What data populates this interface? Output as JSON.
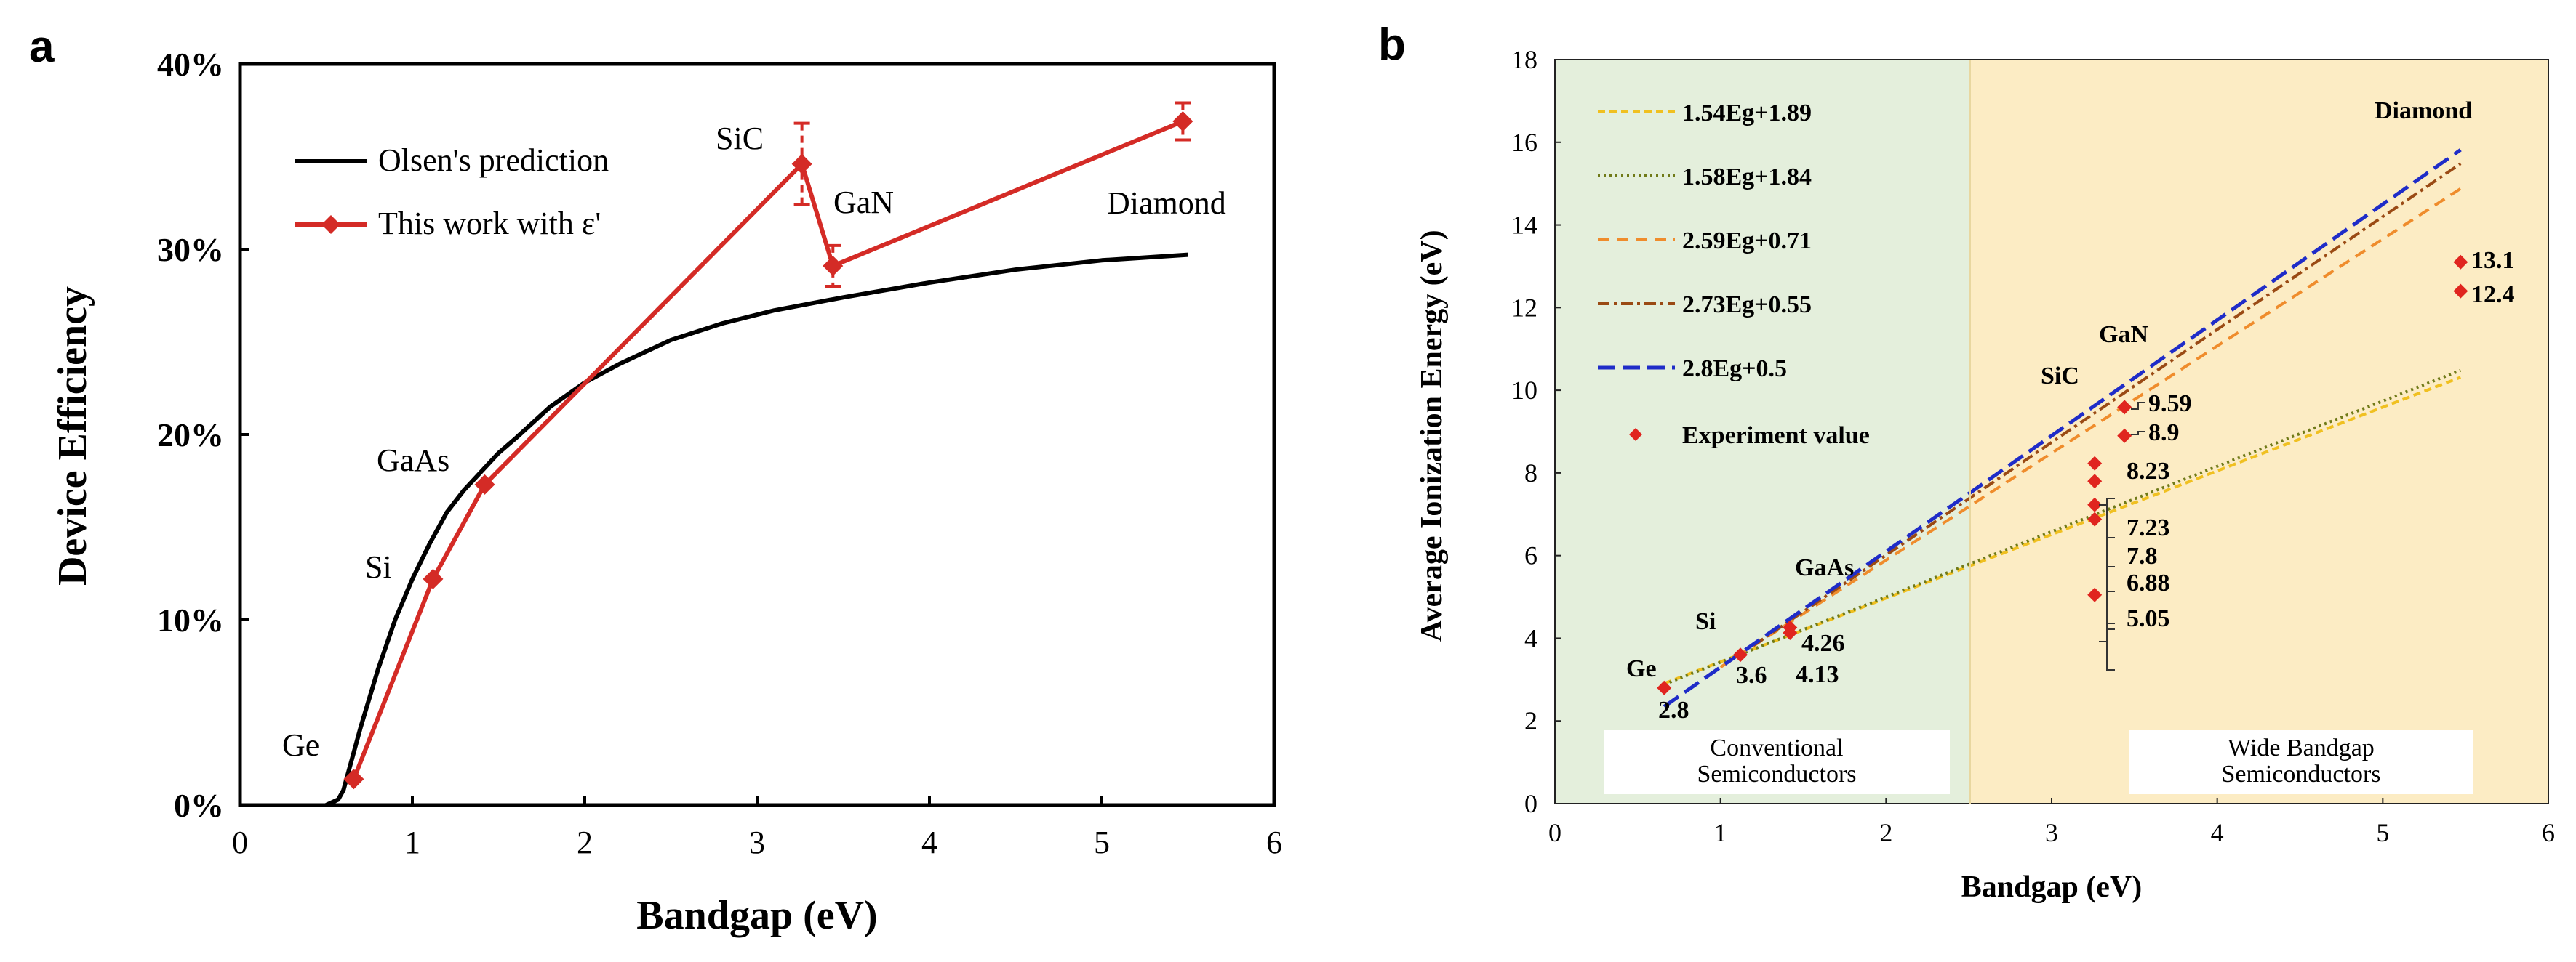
{
  "colors": {
    "black": "#000000",
    "red": "#d42b26",
    "marker_red": "#e0251f",
    "fit_1_54": "#f0c020",
    "fit_1_58": "#707a18",
    "fit_2_59": "#ef8c2c",
    "fit_2_73": "#9a4a14",
    "fit_2_8": "#1f2cc8",
    "region_conventional": "#e4efdc",
    "region_wide": "#fcecc4"
  },
  "chart_data": [
    {
      "panel": "a",
      "type": "line",
      "title": "",
      "xlabel": "Bandgap (eV)",
      "ylabel": "Device Efficiency",
      "xlim": [
        0,
        6
      ],
      "ylim": [
        0,
        40
      ],
      "xticks": [
        "0",
        "1",
        "2",
        "3",
        "4",
        "5",
        "6"
      ],
      "yticks": [
        "0%",
        "10%",
        "20%",
        "30%",
        "40%"
      ],
      "series": [
        {
          "name": "Olsen's prediction",
          "style": "black-line",
          "x": [
            0.5,
            0.57,
            0.6,
            0.65,
            0.7,
            0.8,
            0.9,
            1.0,
            1.1,
            1.2,
            1.3,
            1.4,
            1.5,
            1.6,
            1.8,
            2.0,
            2.2,
            2.5,
            2.8,
            3.1,
            3.5,
            4.0,
            4.5,
            5.0,
            5.5
          ],
          "values": [
            0.0,
            0.3,
            0.8,
            2.5,
            4.2,
            7.3,
            10.0,
            12.2,
            14.1,
            15.8,
            17.0,
            18.0,
            19.0,
            19.8,
            21.5,
            22.8,
            23.8,
            25.1,
            26.0,
            26.7,
            27.4,
            28.2,
            28.9,
            29.4,
            29.7
          ]
        },
        {
          "name": "This work with ε'",
          "style": "red-line-diamond",
          "x": [
            0.66,
            1.12,
            1.42,
            3.26,
            3.44,
            5.47
          ],
          "values": [
            1.4,
            12.2,
            17.3,
            34.6,
            29.1,
            36.9
          ],
          "errors": [
            0,
            0,
            0,
            2.2,
            1.1,
            1.0
          ]
        }
      ],
      "annotations": [
        "Ge",
        "Si",
        "GaAs",
        "SiC",
        "GaN",
        "Diamond"
      ]
    },
    {
      "panel": "b",
      "type": "scatter",
      "title": "",
      "xlabel": "Bandgap (eV)",
      "ylabel": "Average Ionization Energy (eV)",
      "xlim": [
        0,
        6
      ],
      "ylim": [
        0,
        18
      ],
      "xticks": [
        "0",
        "1",
        "2",
        "3",
        "4",
        "5",
        "6"
      ],
      "yticks": [
        "0",
        "2",
        "4",
        "6",
        "8",
        "10",
        "12",
        "14",
        "16",
        "18"
      ],
      "fit_lines": [
        {
          "name": "1.54Eg+1.89",
          "slope": 1.54,
          "intercept": 1.89
        },
        {
          "name": "1.58Eg+1.84",
          "slope": 1.58,
          "intercept": 1.84
        },
        {
          "name": "2.59Eg+0.71",
          "slope": 2.59,
          "intercept": 0.71
        },
        {
          "name": "2.73Eg+0.55",
          "slope": 2.73,
          "intercept": 0.55
        },
        {
          "name": "2.8Eg+0.5",
          "slope": 2.8,
          "intercept": 0.5
        }
      ],
      "experiment": {
        "name": "Experiment value",
        "x": [
          0.66,
          1.12,
          1.42,
          1.42,
          3.26,
          3.26,
          3.26,
          3.26,
          3.26,
          3.44,
          3.44,
          5.47,
          5.47
        ],
        "values": [
          2.8,
          3.6,
          4.26,
          4.13,
          8.23,
          7.8,
          7.23,
          6.88,
          5.05,
          9.59,
          8.9,
          13.1,
          12.4
        ],
        "labels": [
          "2.8",
          "3.6",
          "4.26",
          "4.13",
          "8.23",
          "7.8",
          "7.23",
          "6.88",
          "5.05",
          "9.59",
          "8.9",
          "13.1",
          "12.4"
        ]
      },
      "regions": [
        {
          "name": "Conventional Semiconductors",
          "line1": "Conventional",
          "line2": "Semiconductors",
          "x_range": [
            0,
            2.5
          ]
        },
        {
          "name": "Wide Bandgap Semiconductors",
          "line1": "Wide Bandgap",
          "line2": "Semiconductors",
          "x_range": [
            2.5,
            6
          ]
        }
      ],
      "annotations": [
        "Ge",
        "Si",
        "GaAs",
        "SiC",
        "GaN",
        "Diamond"
      ]
    }
  ]
}
